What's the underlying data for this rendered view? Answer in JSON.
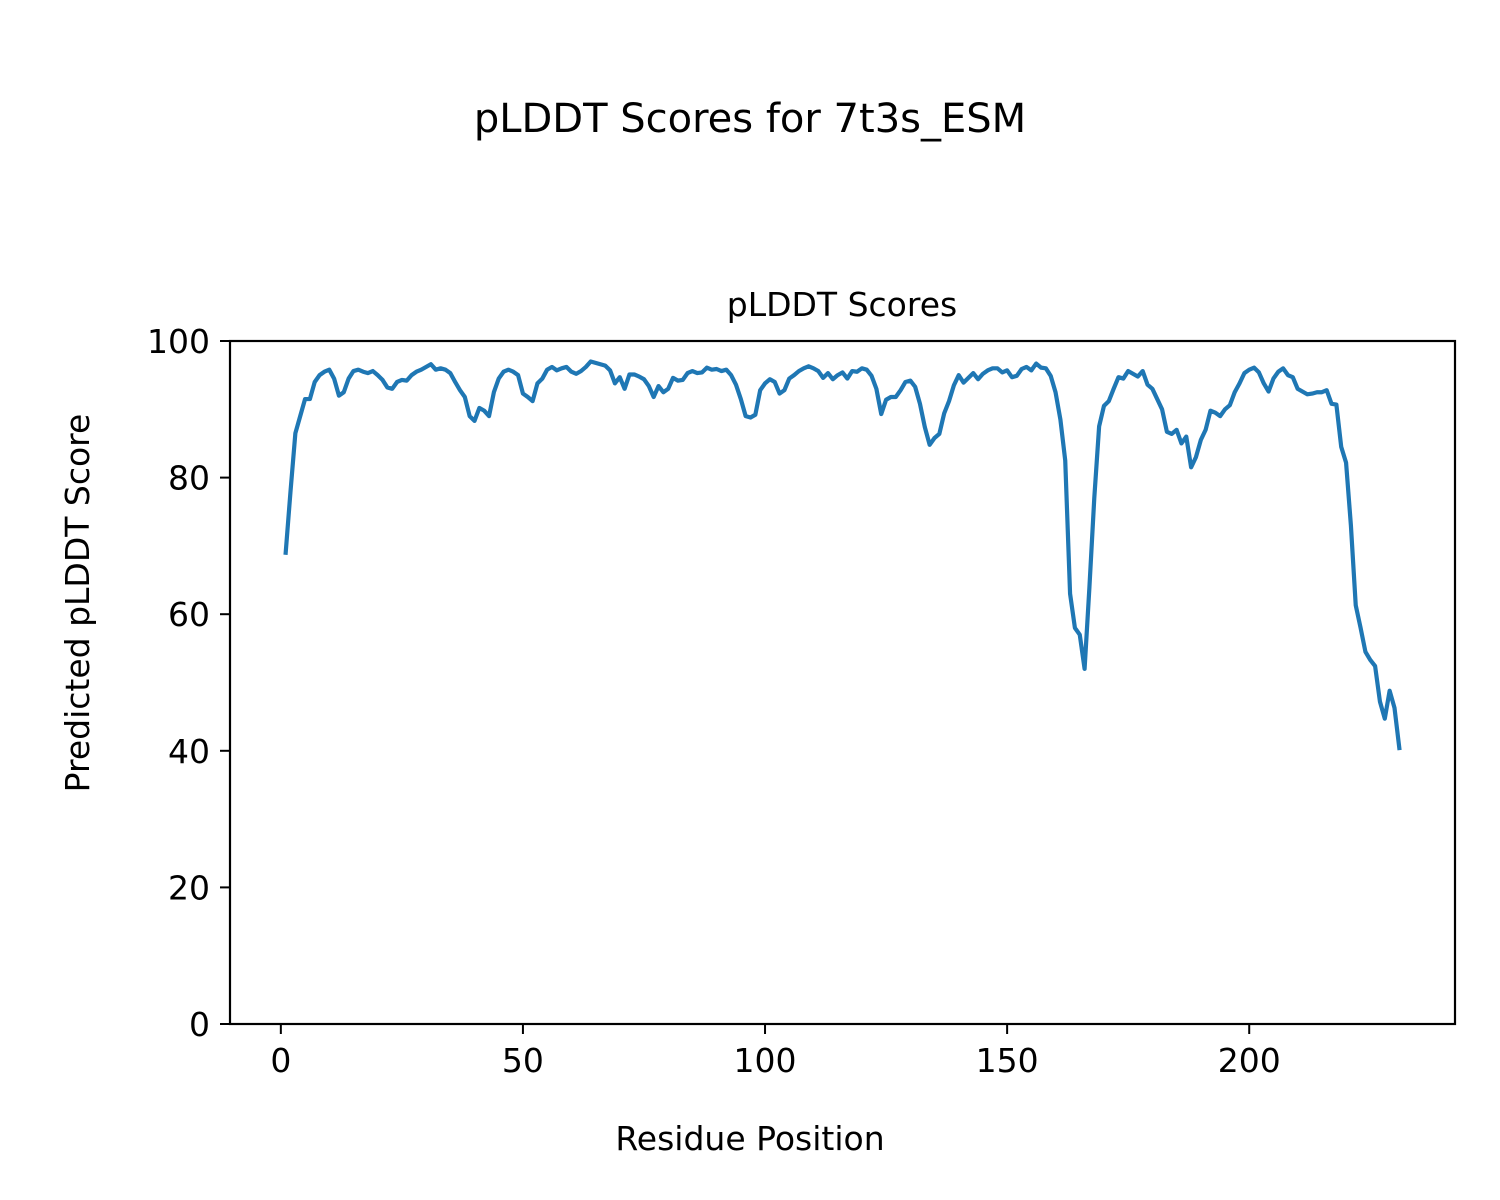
{
  "figure": {
    "suptitle": "pLDDT Scores for 7t3s_ESM"
  },
  "chart_data": {
    "type": "line",
    "title": "pLDDT Scores",
    "xlabel": "Residue Position",
    "ylabel": "Predicted pLDDT Score",
    "xlim": [
      -10.5,
      242.5
    ],
    "ylim": [
      0,
      100
    ],
    "xticks": [
      0,
      50,
      100,
      150,
      200
    ],
    "yticks": [
      0,
      20,
      40,
      60,
      80,
      100
    ],
    "grid": false,
    "legend": "none",
    "series": [
      {
        "color": "#1f77b4",
        "x": [
          1,
          2,
          3,
          4,
          5,
          6,
          7,
          8,
          9,
          10,
          11,
          12,
          13,
          14,
          15,
          16,
          17,
          18,
          19,
          20,
          21,
          22,
          23,
          24,
          25,
          26,
          27,
          28,
          29,
          30,
          31,
          32,
          33,
          34,
          35,
          36,
          37,
          38,
          39,
          40,
          41,
          42,
          43,
          44,
          45,
          46,
          47,
          48,
          49,
          50,
          51,
          52,
          53,
          54,
          55,
          56,
          57,
          58,
          59,
          60,
          61,
          62,
          63,
          64,
          65,
          66,
          67,
          68,
          69,
          70,
          71,
          72,
          73,
          74,
          75,
          76,
          77,
          78,
          79,
          80,
          81,
          82,
          83,
          84,
          85,
          86,
          87,
          88,
          89,
          90,
          91,
          92,
          93,
          94,
          95,
          96,
          97,
          98,
          99,
          100,
          101,
          102,
          103,
          104,
          105,
          106,
          107,
          108,
          109,
          110,
          111,
          112,
          113,
          114,
          115,
          116,
          117,
          118,
          119,
          120,
          121,
          122,
          123,
          124,
          125,
          126,
          127,
          128,
          129,
          130,
          131,
          132,
          133,
          134,
          135,
          136,
          137,
          138,
          139,
          140,
          141,
          142,
          143,
          144,
          145,
          146,
          147,
          148,
          149,
          150,
          151,
          152,
          153,
          154,
          155,
          156,
          157,
          158,
          159,
          160,
          161,
          162,
          163,
          164,
          165,
          166,
          167,
          168,
          169,
          170,
          171,
          172,
          173,
          174,
          175,
          176,
          177,
          178,
          179,
          180,
          181,
          182,
          183,
          184,
          185,
          186,
          187,
          188,
          189,
          190,
          191,
          192,
          193,
          194,
          195,
          196,
          197,
          198,
          199,
          200,
          201,
          202,
          203,
          204,
          205,
          206,
          207,
          208,
          209,
          210,
          211,
          212,
          213,
          214,
          215,
          216,
          217,
          218,
          219,
          220,
          221,
          222,
          223,
          224,
          225,
          226,
          227,
          228,
          229,
          230,
          231
        ],
        "y": [
          69,
          78,
          86.5,
          89,
          91.5,
          91.5,
          94,
          95,
          95.5,
          95.8,
          94.5,
          92,
          92.5,
          94.5,
          95.6,
          95.8,
          95.5,
          95.3,
          95.6,
          95,
          94.3,
          93.2,
          93,
          94,
          94.3,
          94.2,
          95,
          95.5,
          95.8,
          96.2,
          96.6,
          95.8,
          96,
          95.8,
          95.3,
          94,
          92.8,
          91.8,
          89,
          88.3,
          90.2,
          89.8,
          89,
          92.5,
          94.5,
          95.5,
          95.8,
          95.5,
          95,
          92.3,
          91.8,
          91.2,
          93.8,
          94.5,
          95.8,
          96.2,
          95.7,
          96,
          96.2,
          95.5,
          95.2,
          95.6,
          96.2,
          97,
          96.8,
          96.6,
          96.4,
          95.7,
          93.8,
          94.7,
          93,
          95.1,
          95.1,
          94.8,
          94.4,
          93.4,
          91.8,
          93.4,
          92.5,
          93,
          94.6,
          94.2,
          94.3,
          95.3,
          95.6,
          95.3,
          95.4,
          96.1,
          95.8,
          95.9,
          95.6,
          95.8,
          95,
          93.6,
          91.5,
          89,
          88.8,
          89.2,
          92.8,
          93.8,
          94.4,
          94,
          92.3,
          92.8,
          94.5,
          95,
          95.6,
          96,
          96.3,
          96,
          95.6,
          94.6,
          95.3,
          94.4,
          95,
          95.4,
          94.5,
          95.6,
          95.5,
          96,
          95.8,
          94.9,
          93,
          89.3,
          91.4,
          91.8,
          91.8,
          92.8,
          94,
          94.2,
          93.3,
          90.8,
          87.4,
          84.8,
          85.8,
          86.4,
          89.4,
          91.2,
          93.5,
          95,
          93.9,
          94.6,
          95.3,
          94.4,
          95.2,
          95.7,
          96,
          96,
          95.4,
          95.7,
          94.7,
          94.9,
          95.9,
          96.2,
          95.7,
          96.7,
          96.1,
          96,
          94.9,
          92.5,
          88.5,
          82.5,
          63,
          58,
          57,
          52,
          64,
          77,
          87.5,
          90.5,
          91.2,
          93,
          94.7,
          94.5,
          95.6,
          95.2,
          94.8,
          95.6,
          93.6,
          93,
          91.5,
          90,
          86.7,
          86.4,
          87,
          85,
          86,
          81.5,
          83,
          85.5,
          87,
          89.8,
          89.5,
          89,
          90,
          90.6,
          92.5,
          93.8,
          95.3,
          95.8,
          96.1,
          95.4,
          93.8,
          92.6,
          94.5,
          95.5,
          96,
          95,
          94.7,
          93,
          92.6,
          92.2,
          92.3,
          92.5,
          92.5,
          92.8,
          90.8,
          90.7,
          84.5,
          82.2,
          73,
          61.3,
          58,
          54.5,
          53.3,
          52.4,
          47.2,
          44.7,
          48.8,
          46.3,
          40.4
        ]
      }
    ]
  }
}
